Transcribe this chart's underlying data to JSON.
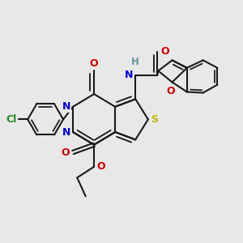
{
  "bg_color": "#e8e8e8",
  "bond_color": "#1a1a1a",
  "bond_lw": 1.5,
  "dbl_off": 0.055,
  "colors": {
    "N": "#0000cc",
    "O": "#cc0000",
    "S": "#bbbb00",
    "Cl": "#228B22",
    "H": "#669999",
    "C": "#1a1a1a"
  },
  "fs": 9.0,
  "xlim": [
    -0.5,
    5.2
  ],
  "ylim": [
    0.5,
    6.2
  ]
}
